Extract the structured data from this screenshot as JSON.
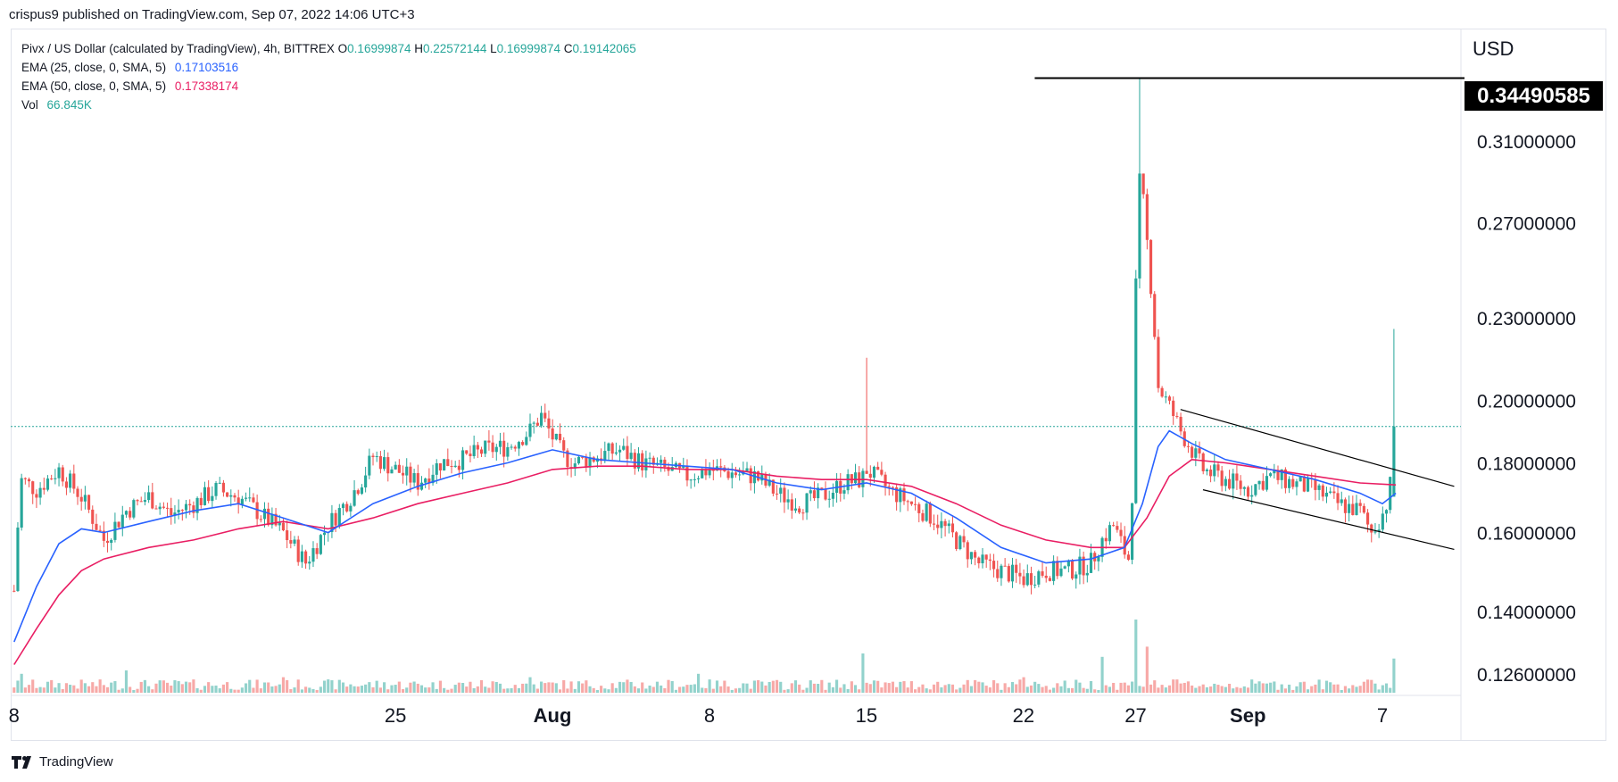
{
  "header": {
    "published_by": "crispus9 published on TradingView.com, Sep 07, 2022 14:06 UTC+3"
  },
  "legend": {
    "symbol": "Pivx / US Dollar (calculated by TradingView), 4h, BITTREX",
    "ohlc": {
      "o_label": "O",
      "o": "0.16999874",
      "h_label": "H",
      "h": "0.22572144",
      "l_label": "L",
      "l": "0.16999874",
      "c_label": "C",
      "c": "0.19142065"
    },
    "ema25_label": "EMA (25, close, 0, SMA, 5)",
    "ema25_value": "0.17103516",
    "ema50_label": "EMA (50, close, 0, SMA, 5)",
    "ema50_value": "0.17338174",
    "vol_label": "Vol",
    "vol_value": "66.845K"
  },
  "price_axis": {
    "currency": "USD",
    "highlight_label": "0.34490585"
  },
  "footer": {
    "brand": "TradingView"
  },
  "colors": {
    "up": "#26a69a",
    "down": "#ef5350",
    "ema25": "#2962ff",
    "ema50": "#e91e63",
    "last_price_line": "#26a69a",
    "trendline": "#000000"
  },
  "chart_data": {
    "type": "candlestick",
    "symbol": "PIVX/USD",
    "timeframe": "4h",
    "y_axis": {
      "scale": "log",
      "ticks": [
        "0.12600000",
        "0.14000000",
        "0.16000000",
        "0.18000000",
        "0.20000000",
        "0.23000000",
        "0.27000000",
        "0.31000000"
      ],
      "tick_values": [
        0.126,
        0.14,
        0.16,
        0.18,
        0.2,
        0.23,
        0.27,
        0.31
      ],
      "range": [
        0.1215,
        0.375
      ]
    },
    "x_axis": {
      "labels": [
        "8",
        "25",
        "Aug",
        "8",
        "15",
        "22",
        "27",
        "Sep",
        "7"
      ],
      "label_days": [
        8,
        25,
        32,
        39,
        46,
        53,
        58,
        63,
        69
      ],
      "range_days": [
        7.85,
        72.5
      ]
    },
    "horizontal_level": 0.34490585,
    "last_close": 0.19142065,
    "price_path": [
      [
        8.0,
        0.145
      ],
      [
        8.3,
        0.175
      ],
      [
        9.0,
        0.172
      ],
      [
        10.0,
        0.178
      ],
      [
        11.0,
        0.17
      ],
      [
        12.0,
        0.158
      ],
      [
        13.0,
        0.166
      ],
      [
        14.0,
        0.17
      ],
      [
        15.0,
        0.165
      ],
      [
        16.0,
        0.168
      ],
      [
        17.0,
        0.172
      ],
      [
        18.0,
        0.17
      ],
      [
        19.0,
        0.165
      ],
      [
        20.0,
        0.16
      ],
      [
        21.0,
        0.152
      ],
      [
        22.0,
        0.162
      ],
      [
        23.0,
        0.17
      ],
      [
        23.5,
        0.175
      ],
      [
        24.0,
        0.182
      ],
      [
        25.0,
        0.178
      ],
      [
        26.0,
        0.174
      ],
      [
        27.0,
        0.18
      ],
      [
        28.0,
        0.181
      ],
      [
        29.0,
        0.184
      ],
      [
        30.0,
        0.185
      ],
      [
        31.0,
        0.19
      ],
      [
        31.5,
        0.195
      ],
      [
        32.0,
        0.188
      ],
      [
        32.5,
        0.182
      ],
      [
        33.0,
        0.18
      ],
      [
        34.0,
        0.182
      ],
      [
        35.0,
        0.184
      ],
      [
        36.0,
        0.18
      ],
      [
        37.0,
        0.178
      ],
      [
        38.0,
        0.176
      ],
      [
        39.0,
        0.178
      ],
      [
        40.0,
        0.177
      ],
      [
        41.0,
        0.176
      ],
      [
        42.0,
        0.171
      ],
      [
        43.0,
        0.168
      ],
      [
        44.0,
        0.17
      ],
      [
        45.0,
        0.174
      ],
      [
        45.8,
        0.175
      ],
      [
        46.0,
        0.178
      ],
      [
        46.5,
        0.175
      ],
      [
        47.0,
        0.172
      ],
      [
        48.0,
        0.168
      ],
      [
        49.0,
        0.164
      ],
      [
        50.0,
        0.158
      ],
      [
        51.0,
        0.152
      ],
      [
        52.0,
        0.15
      ],
      [
        53.0,
        0.148
      ],
      [
        54.0,
        0.15
      ],
      [
        55.0,
        0.15
      ],
      [
        56.0,
        0.152
      ],
      [
        56.5,
        0.158
      ],
      [
        57.0,
        0.162
      ],
      [
        57.5,
        0.155
      ],
      [
        57.8,
        0.152
      ],
      [
        58.0,
        0.24
      ],
      [
        58.2,
        0.295
      ],
      [
        58.5,
        0.262
      ],
      [
        58.8,
        0.23
      ],
      [
        59.0,
        0.205
      ],
      [
        59.5,
        0.198
      ],
      [
        60.0,
        0.19
      ],
      [
        61.0,
        0.178
      ],
      [
        62.0,
        0.175
      ],
      [
        63.0,
        0.172
      ],
      [
        64.0,
        0.176
      ],
      [
        65.0,
        0.174
      ],
      [
        66.0,
        0.172
      ],
      [
        67.0,
        0.168
      ],
      [
        68.0,
        0.166
      ],
      [
        68.5,
        0.16
      ],
      [
        69.0,
        0.165
      ],
      [
        69.3,
        0.17
      ],
      [
        69.6,
        0.1914
      ]
    ],
    "ema25_path": [
      [
        8.0,
        0.133
      ],
      [
        9.0,
        0.146
      ],
      [
        10.0,
        0.157
      ],
      [
        11.0,
        0.161
      ],
      [
        12.0,
        0.16
      ],
      [
        14.0,
        0.163
      ],
      [
        16.0,
        0.166
      ],
      [
        18.0,
        0.168
      ],
      [
        20.0,
        0.164
      ],
      [
        22.0,
        0.16
      ],
      [
        24.0,
        0.168
      ],
      [
        26.0,
        0.173
      ],
      [
        28.0,
        0.177
      ],
      [
        30.0,
        0.18
      ],
      [
        32.0,
        0.184
      ],
      [
        34.0,
        0.181
      ],
      [
        36.0,
        0.18
      ],
      [
        38.0,
        0.179
      ],
      [
        40.0,
        0.178
      ],
      [
        42.0,
        0.174
      ],
      [
        44.0,
        0.172
      ],
      [
        46.0,
        0.174
      ],
      [
        48.0,
        0.171
      ],
      [
        50.0,
        0.164
      ],
      [
        52.0,
        0.156
      ],
      [
        54.0,
        0.152
      ],
      [
        56.0,
        0.153
      ],
      [
        57.5,
        0.156
      ],
      [
        58.3,
        0.168
      ],
      [
        59.0,
        0.185
      ],
      [
        59.5,
        0.19
      ],
      [
        60.5,
        0.186
      ],
      [
        62.0,
        0.181
      ],
      [
        64.0,
        0.178
      ],
      [
        66.0,
        0.175
      ],
      [
        68.0,
        0.171
      ],
      [
        69.0,
        0.168
      ],
      [
        69.6,
        0.171
      ]
    ],
    "ema50_path": [
      [
        8.0,
        0.128
      ],
      [
        9.0,
        0.136
      ],
      [
        10.0,
        0.144
      ],
      [
        11.0,
        0.15
      ],
      [
        12.0,
        0.153
      ],
      [
        14.0,
        0.156
      ],
      [
        16.0,
        0.158
      ],
      [
        18.0,
        0.161
      ],
      [
        20.0,
        0.163
      ],
      [
        22.0,
        0.161
      ],
      [
        24.0,
        0.164
      ],
      [
        26.0,
        0.168
      ],
      [
        28.0,
        0.171
      ],
      [
        30.0,
        0.174
      ],
      [
        32.0,
        0.178
      ],
      [
        34.0,
        0.179
      ],
      [
        36.0,
        0.179
      ],
      [
        38.0,
        0.178
      ],
      [
        40.0,
        0.178
      ],
      [
        42.0,
        0.176
      ],
      [
        44.0,
        0.175
      ],
      [
        46.0,
        0.175
      ],
      [
        48.0,
        0.173
      ],
      [
        50.0,
        0.168
      ],
      [
        52.0,
        0.162
      ],
      [
        54.0,
        0.158
      ],
      [
        56.0,
        0.156
      ],
      [
        57.5,
        0.156
      ],
      [
        58.5,
        0.164
      ],
      [
        59.5,
        0.176
      ],
      [
        60.5,
        0.181
      ],
      [
        62.0,
        0.18
      ],
      [
        64.0,
        0.178
      ],
      [
        66.0,
        0.176
      ],
      [
        68.0,
        0.174
      ],
      [
        69.6,
        0.1734
      ]
    ],
    "volume_spikes": [
      [
        8.3,
        0.4
      ],
      [
        13.0,
        0.5
      ],
      [
        20.0,
        0.3
      ],
      [
        31.0,
        0.3
      ],
      [
        38.5,
        0.4
      ],
      [
        45.8,
        1.0
      ],
      [
        53.0,
        0.3
      ],
      [
        56.5,
        0.9
      ],
      [
        58.0,
        2.0
      ],
      [
        58.5,
        1.2
      ],
      [
        69.6,
        0.85
      ]
    ],
    "volume_max": 66845,
    "trendlines": [
      {
        "from": [
          60.0,
          0.197
        ],
        "to": [
          72.2,
          0.173
        ]
      },
      {
        "from": [
          61.0,
          0.172
        ],
        "to": [
          72.2,
          0.1555
        ]
      }
    ],
    "candle_step_days": 0.1667
  }
}
